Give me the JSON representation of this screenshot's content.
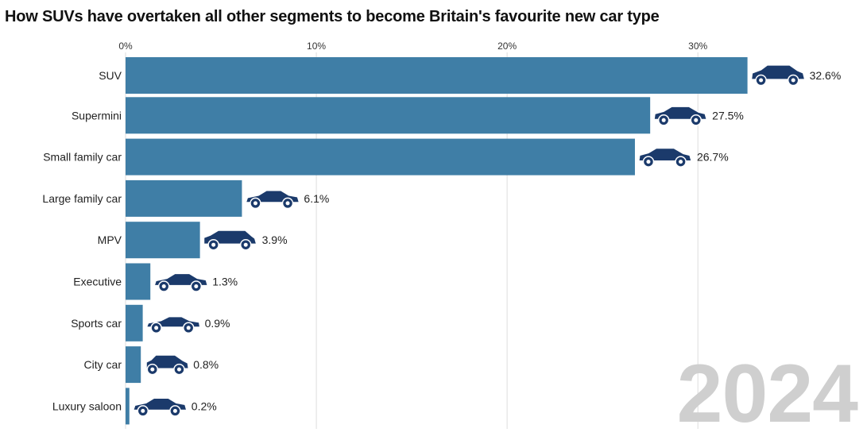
{
  "title": "How SUVs have overtaken all other segments to become Britain's favourite new car type",
  "year_label": "2024",
  "colors": {
    "bar": "#3f7ea6",
    "car": "#1b3a6b",
    "grid": "#dddddd",
    "year": "#cfcfcf"
  },
  "chart_data": {
    "type": "bar",
    "orientation": "horizontal",
    "title": "How SUVs have overtaken all other segments to become Britain's favourite new car type",
    "xlabel": "",
    "ylabel": "",
    "xlim": [
      0,
      33.7
    ],
    "ticks": [
      0,
      10,
      20,
      30
    ],
    "tick_labels": [
      "0%",
      "10%",
      "20%",
      "30%"
    ],
    "grid": true,
    "categories": [
      "SUV",
      "Supermini",
      "Small family car",
      "Large family car",
      "MPV",
      "Executive",
      "Sports car",
      "City car",
      "Luxury saloon"
    ],
    "values": [
      32.6,
      27.5,
      26.7,
      6.1,
      3.9,
      1.3,
      0.9,
      0.8,
      0.2
    ],
    "value_labels": [
      "32.6%",
      "27.5%",
      "26.7%",
      "6.1%",
      "3.9%",
      "1.3%",
      "0.9%",
      "0.8%",
      "0.2%"
    ],
    "icons": [
      "suv-icon",
      "hatchback-icon",
      "hatchback-icon",
      "sedan-icon",
      "mpv-icon",
      "sedan-icon",
      "sports-car-icon",
      "city-car-icon",
      "sedan-icon"
    ]
  }
}
